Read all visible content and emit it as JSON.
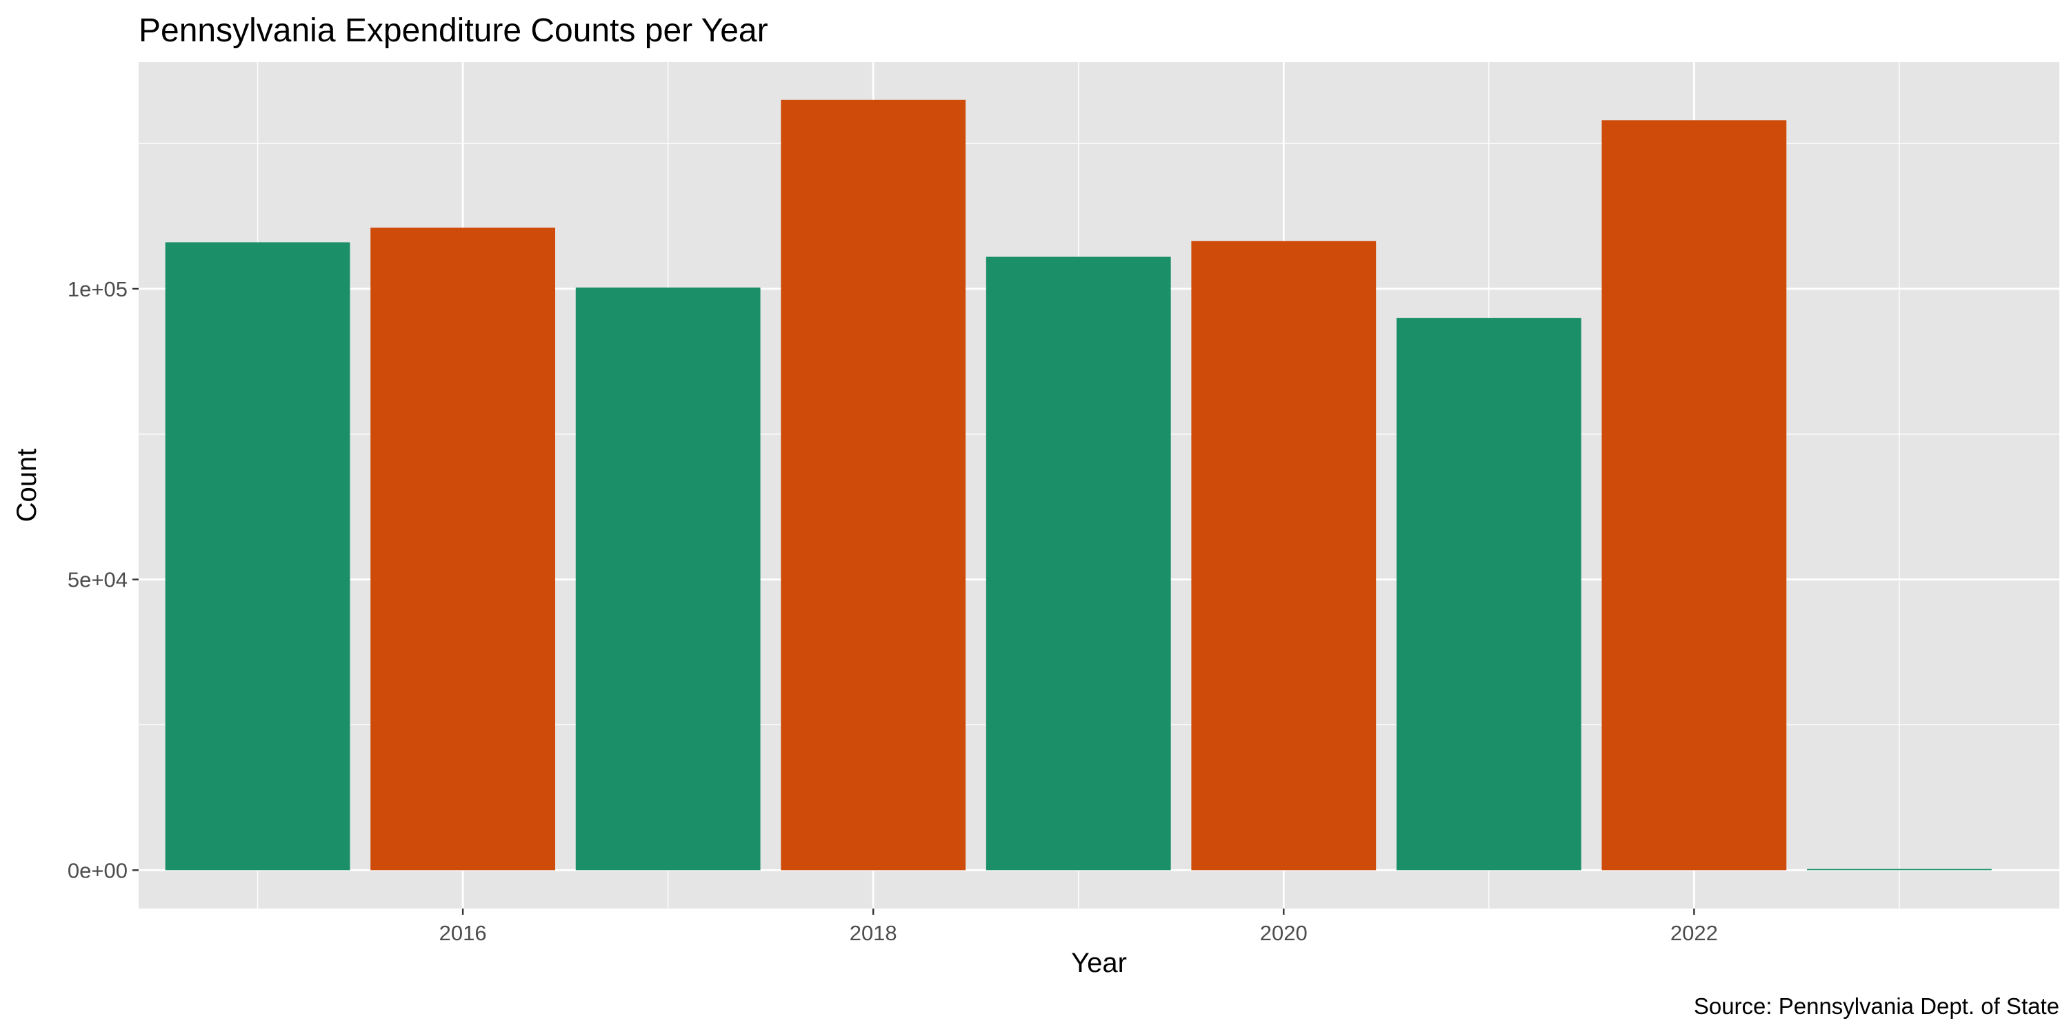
{
  "chart_data": {
    "type": "bar",
    "title": "Pennsylvania Expenditure Counts per Year",
    "xlabel": "Year",
    "ylabel": "Count",
    "caption": "Source: Pennsylvania Dept. of State",
    "categories": [
      "2015",
      "2016",
      "2017",
      "2018",
      "2019",
      "2020",
      "2021",
      "2022",
      "2023"
    ],
    "x": [
      2015,
      2016,
      2017,
      2018,
      2019,
      2020,
      2021,
      2022,
      2023
    ],
    "values": [
      108000,
      110500,
      100200,
      132500,
      105500,
      108200,
      95000,
      129000,
      200
    ],
    "bar_colors": [
      "#1b9068",
      "#cf4b0a",
      "#1b9068",
      "#cf4b0a",
      "#1b9068",
      "#cf4b0a",
      "#1b9068",
      "#cf4b0a",
      "#1b9068"
    ],
    "xlim": [
      2014.42,
      2023.78
    ],
    "ylim": [
      -6600,
      139000
    ],
    "x_ticks": [
      2016,
      2018,
      2020,
      2022
    ],
    "x_tick_labels": [
      "2016",
      "2018",
      "2020",
      "2022"
    ],
    "y_ticks": [
      0,
      50000,
      100000
    ],
    "y_tick_labels": [
      "0e+00",
      "5e+04",
      "1e+05"
    ],
    "grid": true,
    "panel_background": "#e5e5e5",
    "grid_color": "#ffffff"
  }
}
